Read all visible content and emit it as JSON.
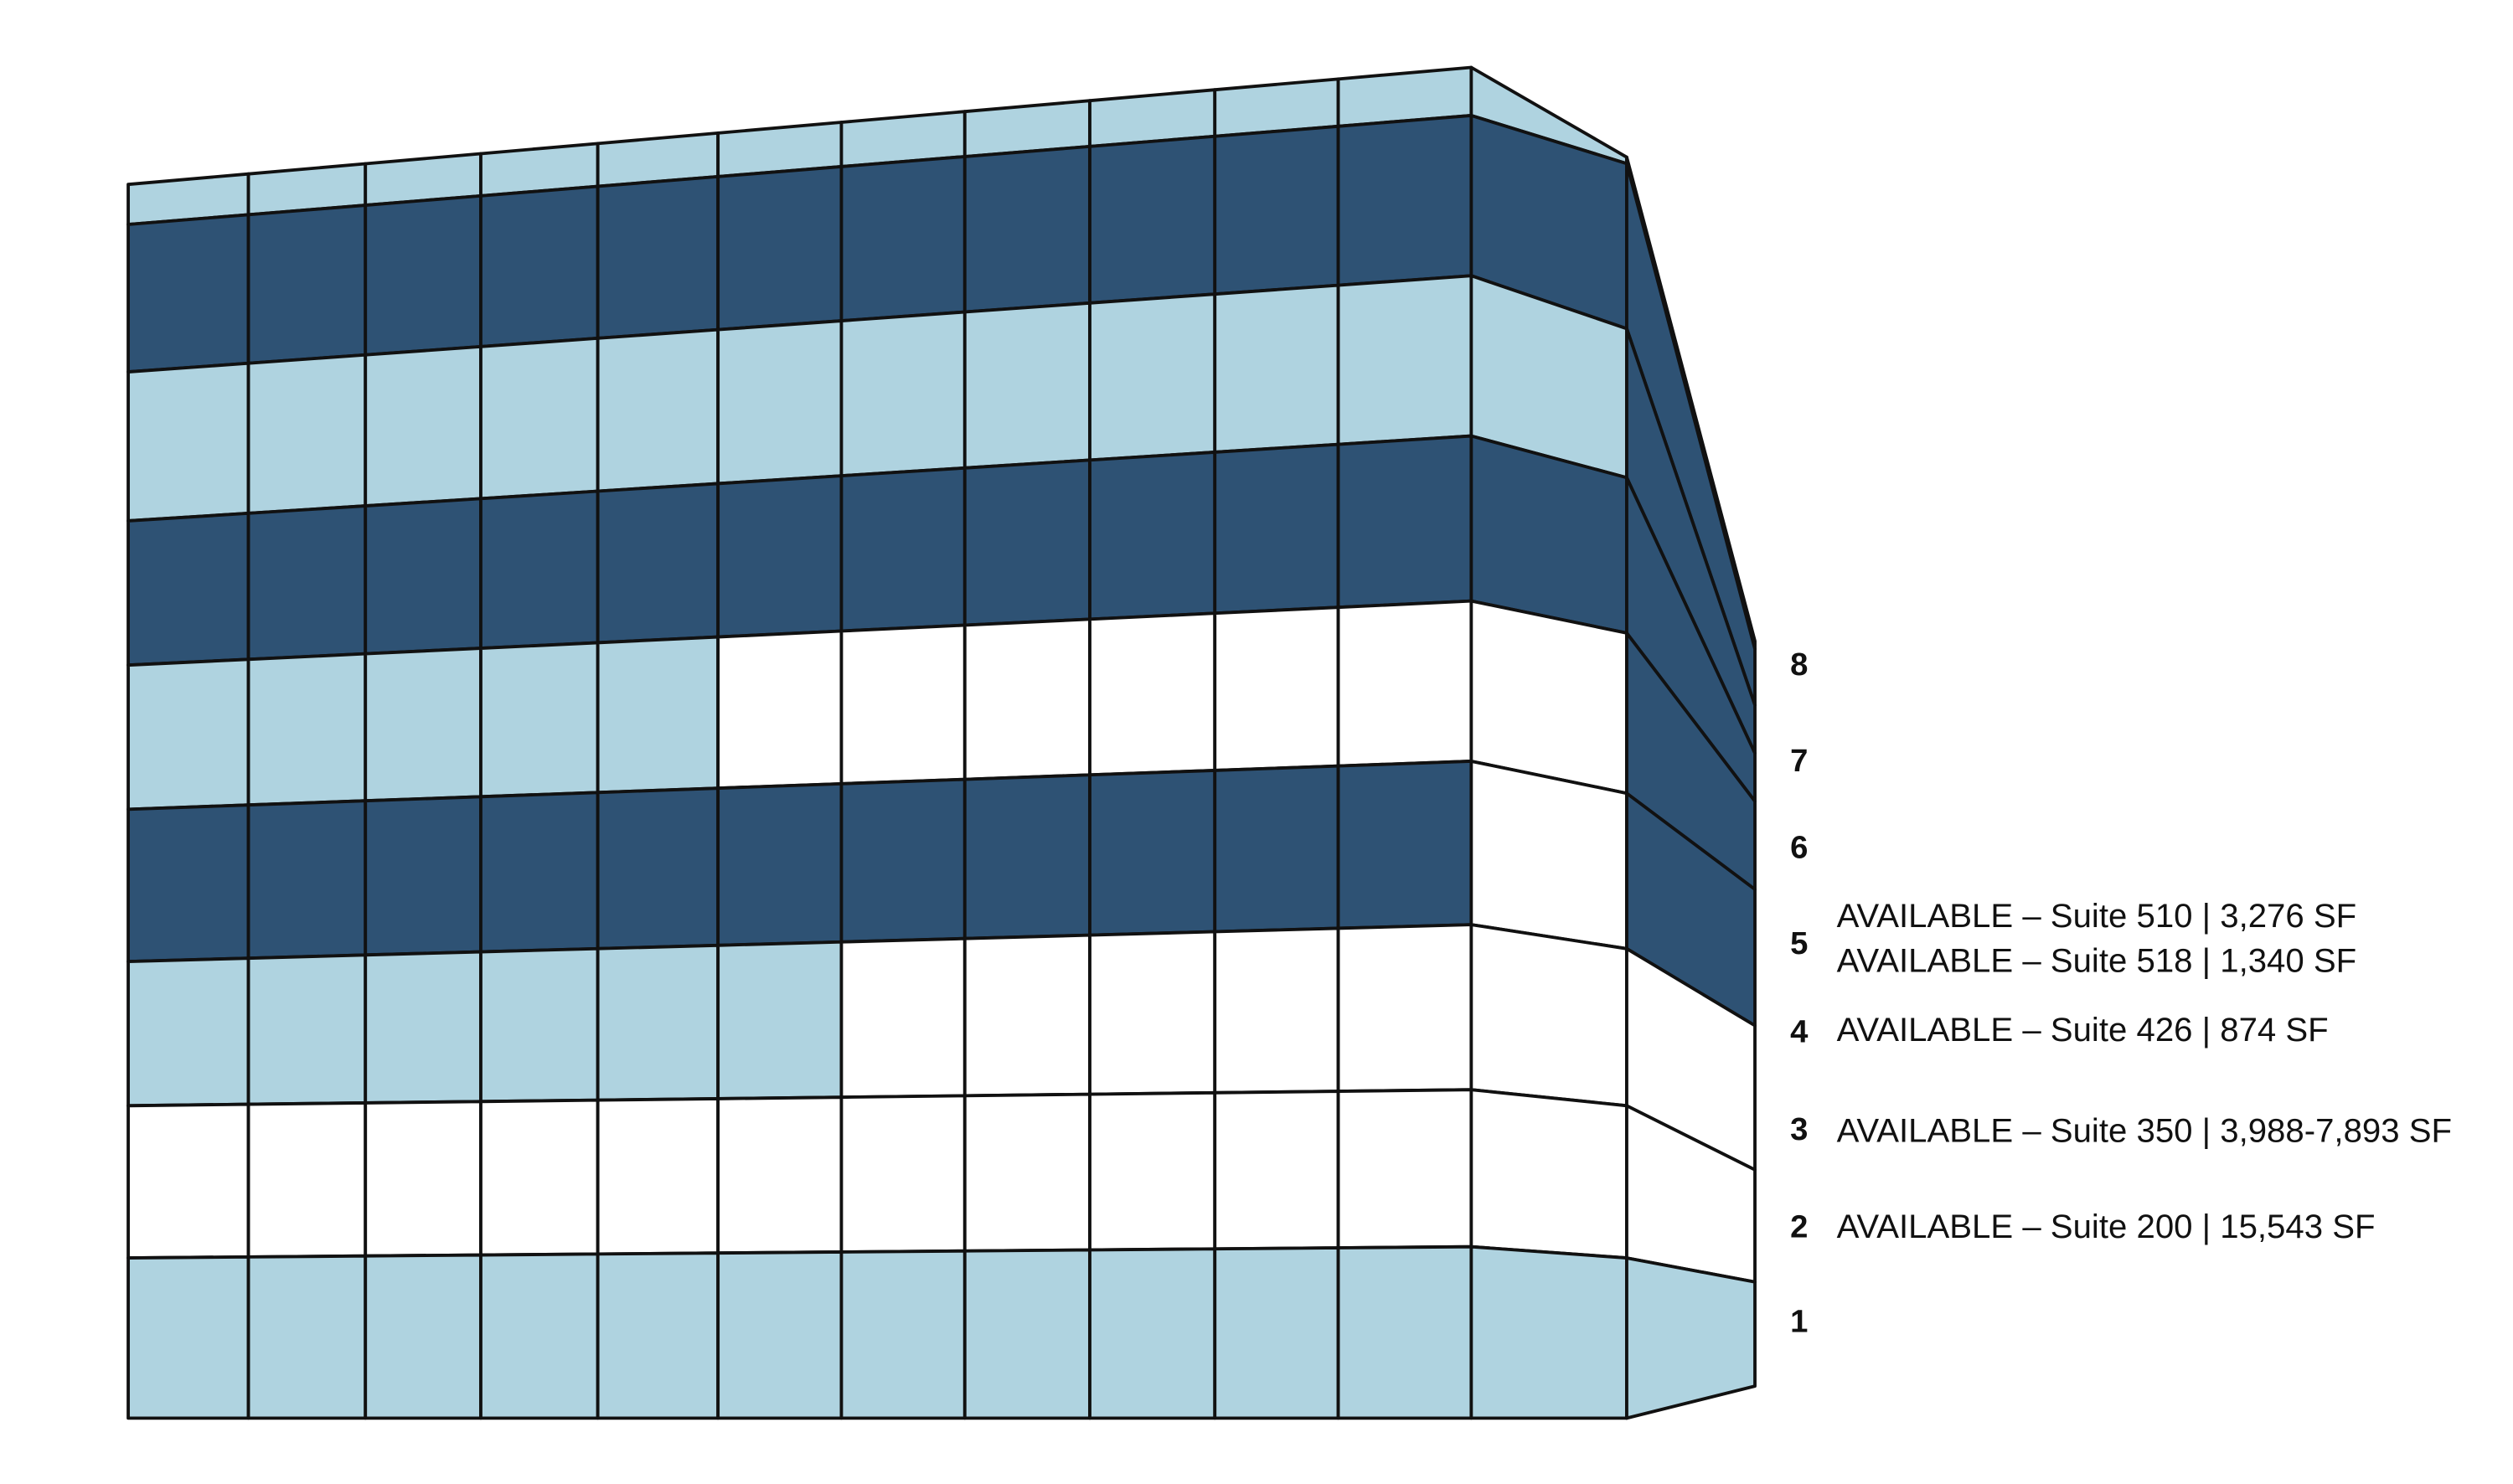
{
  "floors": [
    {
      "label": "8"
    },
    {
      "label": "7"
    },
    {
      "label": "6"
    },
    {
      "label": "5",
      "listings": [
        "AVAILABLE – Suite 510 | 3,276 SF",
        "AVAILABLE – Suite 518 | 1,340 SF"
      ]
    },
    {
      "label": "4",
      "listings": [
        "AVAILABLE – Suite 426 | 874 SF"
      ]
    },
    {
      "label": "3",
      "listings": [
        "AVAILABLE – Suite 350 | 3,988-7,893 SF"
      ]
    },
    {
      "label": "2",
      "listings": [
        "AVAILABLE – Suite 200 | 15,543 SF"
      ]
    },
    {
      "label": "1"
    }
  ]
}
